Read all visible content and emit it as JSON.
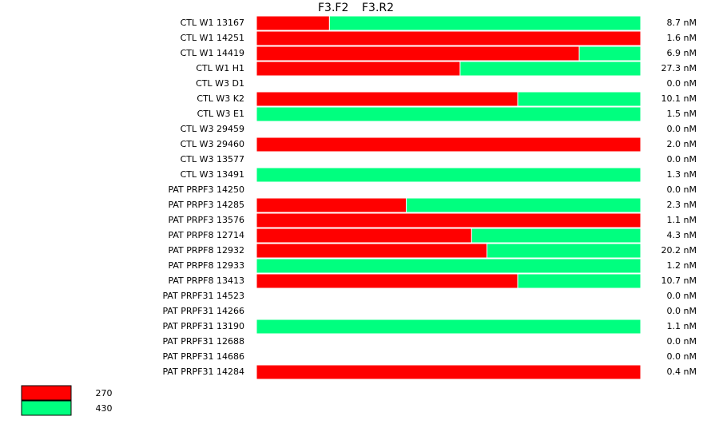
{
  "chart_data": {
    "type": "bar",
    "orientation": "horizontal",
    "stacked": true,
    "headers": [
      "F3.F2",
      "F3.R2"
    ],
    "categories": [
      "CTL W1 13167",
      "CTL W1 14251",
      "CTL W1 14419",
      "CTL W1 H1",
      "CTL W3 D1",
      "CTL W3 K2",
      "CTL W3 E1",
      "CTL W3 29459",
      "CTL W3 29460",
      "CTL W3 13577",
      "CTL W3 13491",
      "PAT PRPF3 14250",
      "PAT PRPF3 14285",
      "PAT PRPF3 13576",
      "PAT PRPF8 12714",
      "PAT PRPF8 12932",
      "PAT PRPF8 12933",
      "PAT PRPF8 13413",
      "PAT PRPF31 14523",
      "PAT PRPF31 14266",
      "PAT PRPF31 13190",
      "PAT PRPF31 12688",
      "PAT PRPF31 14686",
      "PAT PRPF31 14284"
    ],
    "totals": [
      "8.7 nM",
      "1.6 nM",
      "6.9 nM",
      "27.3 nM",
      "0.0 nM",
      "10.1 nM",
      "1.5 nM",
      "0.0 nM",
      "2.0 nM",
      "0.0 nM",
      "1.3 nM",
      "0.0 nM",
      "2.3 nM",
      "1.1 nM",
      "4.3 nM",
      "20.2 nM",
      "1.2 nM",
      "10.7 nM",
      "0.0 nM",
      "0.0 nM",
      "1.1 nM",
      "0.0 nM",
      "0.0 nM",
      "0.4 nM"
    ],
    "series": [
      {
        "name": "270",
        "color": "#ff0000",
        "values": [
          19,
          100,
          84,
          53,
          0,
          68,
          0,
          0,
          100,
          0,
          0,
          0,
          39,
          100,
          56,
          60,
          0,
          68,
          0,
          0,
          0,
          0,
          0,
          100
        ]
      },
      {
        "name": "430",
        "color": "#00ff7f",
        "values": [
          81,
          0,
          16,
          47,
          0,
          32,
          100,
          0,
          0,
          0,
          100,
          0,
          61,
          0,
          44,
          40,
          100,
          32,
          0,
          0,
          100,
          0,
          0,
          0
        ]
      }
    ],
    "xlim": [
      0,
      100
    ],
    "legend": "bottom-left"
  }
}
